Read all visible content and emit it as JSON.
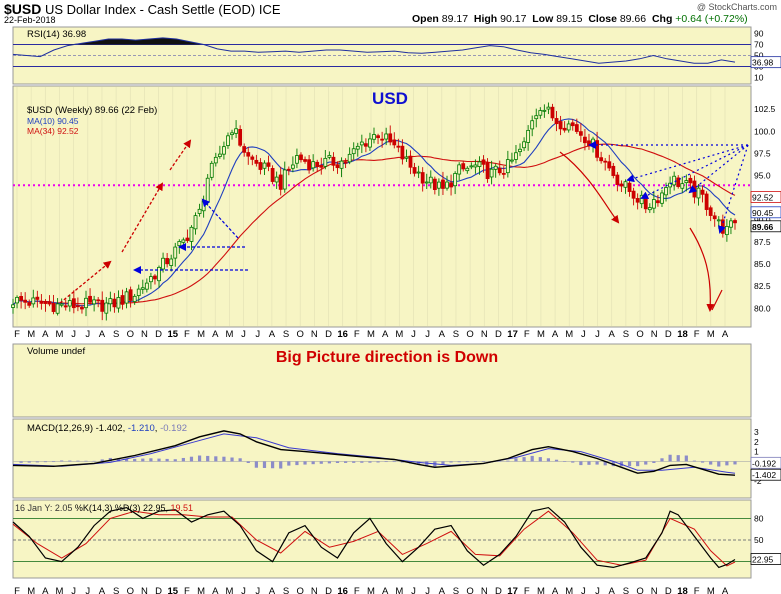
{
  "header": {
    "symbol": "$USD",
    "name": "US Dollar Index - Cash Settle (EOD)",
    "exchange": "ICE",
    "date": "22-Feb-2018",
    "open_label": "Open",
    "open": "89.17",
    "high_label": "High",
    "high": "90.17",
    "low_label": "Low",
    "low": "89.15",
    "close_label": "Close",
    "close": "89.66",
    "chg_label": "Chg",
    "chg": "+0.64 (+0.72%)",
    "brand": "@ StockCharts.com"
  },
  "colors": {
    "panel_bg": "#f7f5c4",
    "up": "#007a00",
    "down": "#cc0000",
    "ma_fast": "#1f3fbf",
    "ma_slow": "#d01010",
    "arrow_red": "#cc0000",
    "arrow_blue": "#0000dd",
    "magenta": "#ee00ee",
    "annot_blue": "#1010d0",
    "annot_red": "#d00000"
  },
  "annotations": {
    "title": "USD",
    "caption": "Big Picture direction is Down"
  },
  "x_axis": {
    "months": [
      "F",
      "M",
      "A",
      "M",
      "J",
      "J",
      "A",
      "S",
      "O",
      "N",
      "D",
      "15",
      "F",
      "M",
      "A",
      "M",
      "J",
      "J",
      "A",
      "S",
      "O",
      "N",
      "D",
      "16",
      "F",
      "M",
      "A",
      "M",
      "J",
      "J",
      "A",
      "S",
      "O",
      "N",
      "D",
      "17",
      "F",
      "M",
      "A",
      "M",
      "J",
      "J",
      "A",
      "S",
      "O",
      "N",
      "D",
      "18",
      "F",
      "M",
      "A"
    ],
    "bold_labels": [
      "15",
      "16",
      "17",
      "18"
    ]
  },
  "chart_data": [
    {
      "type": "line",
      "panel": "rsi",
      "legend": "RSI(14) 36.98",
      "ylim": [
        0,
        100
      ],
      "ticks": [
        10,
        30,
        50,
        70,
        90
      ],
      "levels": [
        30,
        50,
        70
      ],
      "last_value_label": "36.98",
      "values": [
        52,
        50,
        48,
        60,
        68,
        72,
        76,
        80,
        80,
        78,
        80,
        82,
        80,
        75,
        70,
        62,
        58,
        58,
        56,
        57,
        58,
        56,
        58,
        60,
        60,
        58,
        56,
        57,
        58,
        55,
        54,
        56,
        58,
        60,
        64,
        68,
        66,
        60,
        55,
        52,
        48,
        44,
        40,
        36,
        38,
        40,
        44,
        50,
        44,
        40,
        36,
        36,
        42,
        38
      ]
    },
    {
      "type": "candlestick",
      "panel": "price",
      "legend": "$USD (Weekly) 89.66 (22 Feb)",
      "ylim": [
        78,
        105
      ],
      "ticks": [
        80.0,
        82.5,
        85.0,
        87.5,
        90.0,
        92.5,
        95.0,
        97.5,
        100.0,
        102.5
      ],
      "horizontal_level": 93.9,
      "last_value_labels": [
        "92.52",
        "90.45",
        "89.66"
      ],
      "series": [
        {
          "name": "MA(10) 90.45",
          "role": "ma_fast"
        },
        {
          "name": "MA(34) 92.52",
          "role": "ma_slow"
        }
      ],
      "close_path": [
        [
          0,
          80.9
        ],
        [
          12,
          80.3
        ],
        [
          24,
          80.4
        ],
        [
          30,
          81.6
        ],
        [
          36,
          84.4
        ],
        [
          42,
          87.5
        ],
        [
          46,
          90.8
        ],
        [
          48,
          94.8
        ],
        [
          50,
          96.4
        ],
        [
          52,
          98.5
        ],
        [
          54,
          100.5
        ],
        [
          58,
          97.0
        ],
        [
          62,
          95.7
        ],
        [
          66,
          94.1
        ],
        [
          70,
          97.1
        ],
        [
          74,
          96.2
        ],
        [
          78,
          96.5
        ],
        [
          82,
          96.6
        ],
        [
          86,
          98.6
        ],
        [
          90,
          99.8
        ],
        [
          94,
          98.2
        ],
        [
          98,
          96.0
        ],
        [
          102,
          94.5
        ],
        [
          106,
          93.3
        ],
        [
          110,
          95.5
        ],
        [
          114,
          96.0
        ],
        [
          118,
          95.2
        ],
        [
          122,
          96.0
        ],
        [
          126,
          98.4
        ],
        [
          128,
          101.5
        ],
        [
          130,
          103.0
        ],
        [
          134,
          101.2
        ],
        [
          138,
          100.6
        ],
        [
          142,
          99.0
        ],
        [
          146,
          96.5
        ],
        [
          150,
          94.0
        ],
        [
          154,
          92.5
        ],
        [
          156,
          91.5
        ],
        [
          160,
          93.0
        ],
        [
          162,
          94.7
        ],
        [
          166,
          93.8
        ],
        [
          170,
          92.5
        ],
        [
          174,
          89.5
        ],
        [
          176,
          88.7
        ],
        [
          178,
          89.66
        ]
      ]
    },
    {
      "type": "bar",
      "panel": "volume",
      "legend": "Volume undef"
    },
    {
      "type": "line",
      "panel": "macd",
      "legend_name": "MACD(12,26,9)",
      "legend_values": [
        "-1.402",
        "-1.210",
        "-0.192"
      ],
      "ticks": [
        -2,
        -1,
        0,
        1,
        2,
        3
      ],
      "ylim": [
        -2.6,
        3.5
      ],
      "last_value_labels": [
        "-0.192",
        "-1.402"
      ],
      "macd": [
        [
          0,
          -0.4
        ],
        [
          10,
          -0.5
        ],
        [
          20,
          -0.2
        ],
        [
          30,
          0.6
        ],
        [
          40,
          1.6
        ],
        [
          46,
          2.5
        ],
        [
          52,
          3.1
        ],
        [
          56,
          2.8
        ],
        [
          60,
          2.0
        ],
        [
          66,
          1.2
        ],
        [
          72,
          1.0
        ],
        [
          80,
          0.7
        ],
        [
          88,
          0.4
        ],
        [
          94,
          0.2
        ],
        [
          100,
          -0.3
        ],
        [
          104,
          -0.6
        ],
        [
          110,
          -0.4
        ],
        [
          116,
          -0.2
        ],
        [
          122,
          0.3
        ],
        [
          128,
          1.2
        ],
        [
          132,
          1.5
        ],
        [
          138,
          1.0
        ],
        [
          144,
          0.3
        ],
        [
          150,
          -0.6
        ],
        [
          154,
          -1.2
        ],
        [
          158,
          -1.0
        ],
        [
          162,
          -0.4
        ],
        [
          166,
          -0.3
        ],
        [
          170,
          -0.8
        ],
        [
          174,
          -1.3
        ],
        [
          178,
          -1.402
        ]
      ],
      "signal": [
        [
          0,
          -0.3
        ],
        [
          12,
          -0.5
        ],
        [
          24,
          -0.1
        ],
        [
          34,
          0.8
        ],
        [
          44,
          1.9
        ],
        [
          52,
          2.8
        ],
        [
          60,
          2.4
        ],
        [
          68,
          1.4
        ],
        [
          80,
          0.8
        ],
        [
          90,
          0.4
        ],
        [
          100,
          -0.1
        ],
        [
          108,
          -0.4
        ],
        [
          116,
          -0.2
        ],
        [
          124,
          0.4
        ],
        [
          132,
          1.3
        ],
        [
          140,
          1.0
        ],
        [
          148,
          0.0
        ],
        [
          154,
          -0.9
        ],
        [
          160,
          -0.9
        ],
        [
          168,
          -0.6
        ],
        [
          176,
          -1.1
        ],
        [
          178,
          -1.21
        ]
      ]
    },
    {
      "type": "line",
      "panel": "stochastic",
      "legend_name": "%K(14,3) %D(3)",
      "legend_values": [
        "22.95",
        "19.51"
      ],
      "legend_note": "16 Jan Y: 2.05",
      "ylim": [
        0,
        100
      ],
      "ticks": [
        20,
        50,
        80
      ],
      "last_value_label": "22.95",
      "k": [
        [
          0,
          75
        ],
        [
          4,
          55
        ],
        [
          8,
          25
        ],
        [
          12,
          20
        ],
        [
          16,
          40
        ],
        [
          20,
          70
        ],
        [
          24,
          90
        ],
        [
          28,
          95
        ],
        [
          32,
          80
        ],
        [
          36,
          90
        ],
        [
          40,
          92
        ],
        [
          44,
          75
        ],
        [
          48,
          85
        ],
        [
          52,
          90
        ],
        [
          56,
          70
        ],
        [
          60,
          35
        ],
        [
          64,
          20
        ],
        [
          68,
          60
        ],
        [
          72,
          70
        ],
        [
          76,
          40
        ],
        [
          80,
          25
        ],
        [
          84,
          60
        ],
        [
          88,
          80
        ],
        [
          92,
          45
        ],
        [
          96,
          20
        ],
        [
          100,
          40
        ],
        [
          104,
          65
        ],
        [
          108,
          70
        ],
        [
          112,
          35
        ],
        [
          116,
          15
        ],
        [
          120,
          30
        ],
        [
          124,
          55
        ],
        [
          128,
          90
        ],
        [
          132,
          95
        ],
        [
          136,
          75
        ],
        [
          140,
          40
        ],
        [
          144,
          15
        ],
        [
          148,
          12
        ],
        [
          152,
          18
        ],
        [
          156,
          25
        ],
        [
          160,
          60
        ],
        [
          162,
          90
        ],
        [
          164,
          85
        ],
        [
          168,
          55
        ],
        [
          172,
          25
        ],
        [
          174,
          12
        ],
        [
          176,
          16
        ],
        [
          178,
          22.95
        ]
      ],
      "d": [
        [
          0,
          72
        ],
        [
          6,
          45
        ],
        [
          12,
          25
        ],
        [
          18,
          45
        ],
        [
          24,
          80
        ],
        [
          30,
          90
        ],
        [
          36,
          85
        ],
        [
          42,
          85
        ],
        [
          48,
          82
        ],
        [
          54,
          82
        ],
        [
          60,
          50
        ],
        [
          66,
          32
        ],
        [
          72,
          62
        ],
        [
          78,
          40
        ],
        [
          84,
          48
        ],
        [
          90,
          62
        ],
        [
          96,
          30
        ],
        [
          102,
          45
        ],
        [
          108,
          62
        ],
        [
          114,
          30
        ],
        [
          120,
          28
        ],
        [
          126,
          65
        ],
        [
          132,
          90
        ],
        [
          138,
          60
        ],
        [
          144,
          22
        ],
        [
          150,
          15
        ],
        [
          156,
          22
        ],
        [
          162,
          80
        ],
        [
          168,
          65
        ],
        [
          172,
          35
        ],
        [
          176,
          14
        ],
        [
          178,
          19.51
        ]
      ]
    }
  ]
}
